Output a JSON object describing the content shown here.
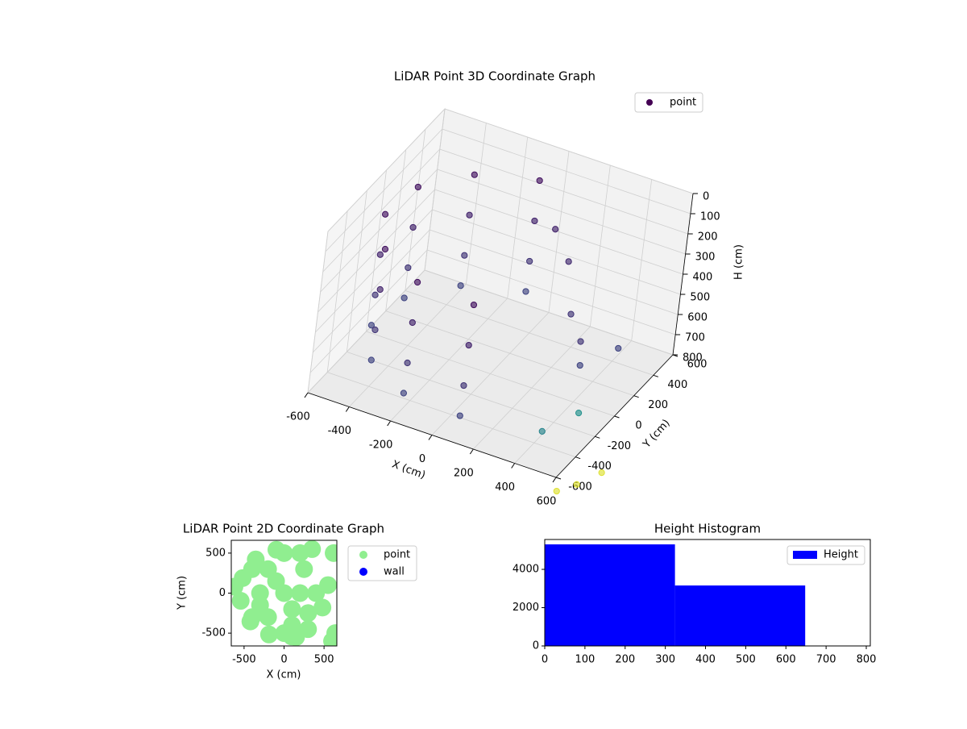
{
  "chart_data": [
    {
      "type": "scatter3d",
      "title": "LiDAR Point 3D Coordinate Graph",
      "xlabel": "X (cm)",
      "ylabel": "Y (cm)",
      "zlabel": "H (cm)",
      "colormap": "viridis",
      "clim": [
        0,
        1
      ],
      "legend": "upper right",
      "xlim": [
        -600,
        600
      ],
      "ylim": [
        -600,
        600
      ],
      "zlim": [
        0,
        800
      ],
      "z_inverted": true,
      "xticks": [
        -600,
        -400,
        -200,
        0,
        200,
        400,
        600
      ],
      "yticks": [
        -600,
        -400,
        -200,
        0,
        200,
        400,
        600
      ],
      "zticks": [
        0,
        100,
        200,
        300,
        400,
        500,
        600,
        700,
        800
      ],
      "series": [
        {
          "name": "point",
          "x": [
            -96,
            -96,
            -96,
            -96,
            -354,
            -354,
            -354,
            -354,
            -517,
            -517,
            -517,
            -517,
            -542,
            -542,
            -542,
            -542,
            -421,
            -421,
            -421,
            -421,
            -188,
            -188,
            -188,
            -188,
            96,
            96,
            96,
            96,
            100,
            200,
            300,
            400,
            450,
            500,
            550,
            450,
            650,
            700,
            750
          ],
          "y": [
            542,
            542,
            542,
            542,
            421,
            421,
            421,
            421,
            188,
            188,
            188,
            188,
            -96,
            -96,
            -96,
            -96,
            -354,
            -354,
            -354,
            -354,
            -517,
            -517,
            -517,
            -517,
            -542,
            -542,
            -542,
            -542,
            300,
            250,
            100,
            0,
            -100,
            200,
            -300,
            -450,
            -700,
            -600,
            -450
          ],
          "z": [
            150,
            350,
            550,
            700,
            150,
            350,
            550,
            700,
            150,
            350,
            550,
            700,
            150,
            350,
            550,
            700,
            150,
            350,
            550,
            700,
            150,
            350,
            550,
            700,
            150,
            350,
            550,
            700,
            200,
            300,
            450,
            500,
            550,
            600,
            650,
            700,
            800,
            800,
            800
          ],
          "c": [
            0.05,
            0.1,
            0.15,
            0.2,
            0.05,
            0.1,
            0.15,
            0.2,
            0.05,
            0.1,
            0.15,
            0.2,
            0.05,
            0.1,
            0.15,
            0.2,
            0.05,
            0.1,
            0.15,
            0.2,
            0.05,
            0.1,
            0.15,
            0.2,
            0.05,
            0.1,
            0.15,
            0.2,
            0.1,
            0.12,
            0.15,
            0.15,
            0.2,
            0.2,
            0.5,
            0.45,
            0.95,
            0.95,
            0.95
          ]
        }
      ]
    },
    {
      "type": "scatter",
      "title": "LiDAR Point 2D Coordinate Graph",
      "xlabel": "X (cm)",
      "ylabel": "Y (cm)",
      "legend": "outside right",
      "xlim": [
        -660,
        660
      ],
      "ylim": [
        -660,
        660
      ],
      "xticks": [
        -500,
        0,
        500
      ],
      "yticks": [
        -500,
        0,
        500
      ],
      "series": [
        {
          "name": "point",
          "color": "#90ee90",
          "x": [
            -96,
            -354,
            -517,
            -542,
            -421,
            -188,
            96,
            -300,
            -200,
            -200,
            0,
            100,
            200,
            300,
            -400,
            -400,
            0,
            0,
            100,
            200,
            250,
            300,
            -100,
            -300,
            600,
            640,
            550,
            480,
            400,
            620,
            -620,
            350,
            150
          ],
          "y": [
            542,
            421,
            188,
            -96,
            -354,
            -517,
            -542,
            0,
            300,
            -300,
            0,
            -400,
            500,
            -450,
            300,
            -300,
            500,
            -500,
            -200,
            0,
            300,
            -250,
            150,
            -150,
            -600,
            -500,
            100,
            -180,
            0,
            500,
            80,
            550,
            -550
          ]
        },
        {
          "name": "wall",
          "color": "#0000ff",
          "x": [],
          "y": []
        }
      ]
    },
    {
      "type": "histogram",
      "title": "Height Histogram",
      "legend": "upper right",
      "bins": [
        0,
        324,
        648,
        810
      ],
      "xlim": [
        0,
        810
      ],
      "ylim": [
        0,
        5560
      ],
      "xticks": [
        0,
        100,
        200,
        300,
        400,
        500,
        600,
        700,
        800
      ],
      "yticks": [
        0,
        2000,
        4000
      ],
      "series": [
        {
          "name": "Height",
          "color": "#0000ff",
          "values": [
            5305,
            3158,
            20
          ]
        }
      ]
    }
  ]
}
